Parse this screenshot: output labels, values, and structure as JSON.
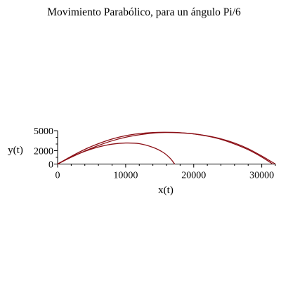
{
  "chart_data": {
    "type": "line",
    "title": "Movimiento Parabólico, para un ángulo Pi/6",
    "xlabel": "x(t)",
    "ylabel": "y(t)",
    "xlim": [
      0,
      32000
    ],
    "ylim": [
      0,
      5000
    ],
    "x_ticks": [
      0,
      10000,
      20000,
      30000
    ],
    "x_tick_labels": [
      "0",
      "10000",
      "20000",
      "30000"
    ],
    "y_ticks": [
      0,
      2000,
      5000
    ],
    "y_tick_labels": [
      "0",
      "2000",
      "5000"
    ],
    "grid": false,
    "line_color": "#8b0f16",
    "series": [
      {
        "x": [
          0,
          2000,
          4000,
          6000,
          8000,
          10000,
          12000,
          14000,
          15800,
          18000,
          20000,
          22000,
          24000,
          26000,
          28000,
          30000,
          31600
        ],
        "y": [
          0,
          1150,
          2200,
          3050,
          3750,
          4250,
          4550,
          4720,
          4760,
          4700,
          4520,
          4180,
          3700,
          3000,
          2150,
          1050,
          0
        ]
      },
      {
        "x": [
          0,
          2000,
          4000,
          6000,
          8000,
          10000,
          12000,
          14000,
          15800,
          18000,
          20000,
          22000,
          24000,
          26000,
          28000,
          30000,
          32000
        ],
        "y": [
          0,
          1020,
          1950,
          2780,
          3480,
          4010,
          4380,
          4640,
          4720,
          4680,
          4520,
          4220,
          3780,
          3150,
          2300,
          1200,
          0
        ]
      },
      {
        "x": [
          0,
          2000,
          4000,
          6000,
          8000,
          10000,
          12000,
          14000,
          15500,
          16500,
          17200
        ],
        "y": [
          0,
          1050,
          1900,
          2550,
          2980,
          3150,
          3050,
          2500,
          1750,
          900,
          0
        ]
      }
    ]
  }
}
